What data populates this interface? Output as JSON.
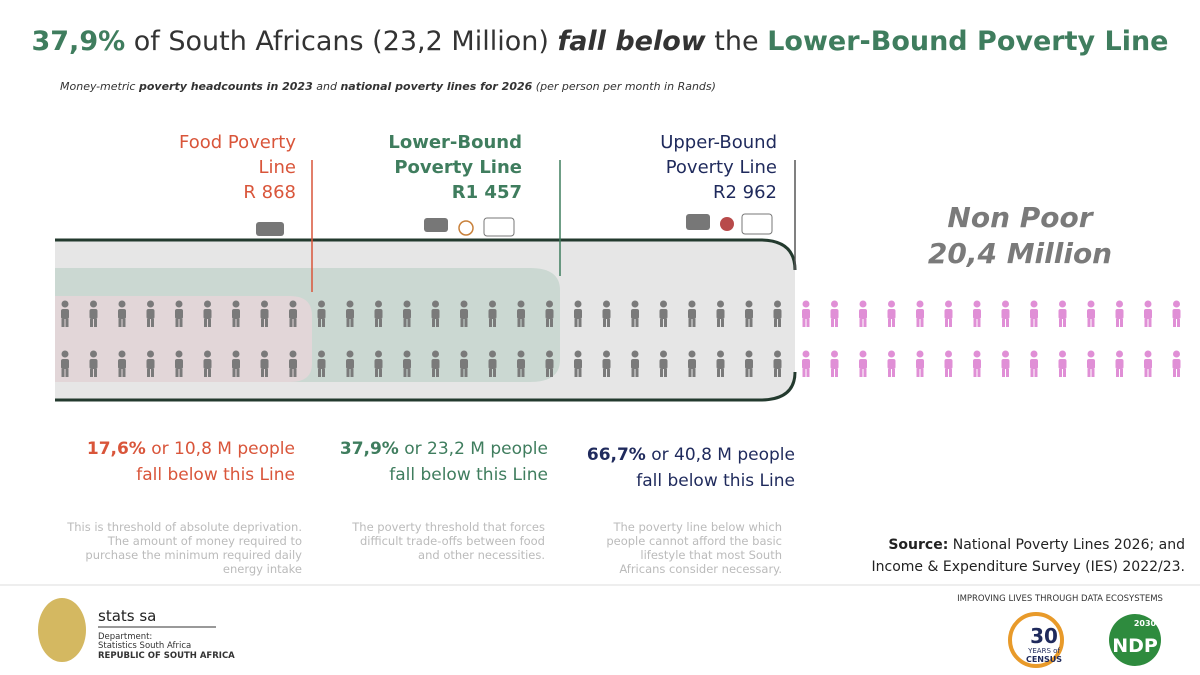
{
  "header": {
    "title": [
      "37,9%",
      " of South Africans (23,2 Million) ",
      "fall below",
      " the ",
      "Lower-Bound Poverty Line"
    ],
    "subtitle": [
      "Money-metric ",
      "poverty headcounts in 2023",
      " and ",
      "national poverty lines for 2026",
      " (per person per month in Rands)"
    ]
  },
  "lines": [
    {
      "name": [
        "Food Poverty",
        "Line"
      ],
      "amount": "R  868",
      "share": "17,6%",
      "count": " or 10,8 M people",
      "note": "fall below this Line",
      "description": "This is threshold of absolute deprivation. The amount of money required to purchase the minimum required daily energy intake"
    },
    {
      "name": [
        "Lower-Bound",
        "Poverty Line"
      ],
      "amount": "R1 457",
      "share": "37,9%",
      "count": " or 23,2 M people",
      "note": "fall below this Line",
      "description": "The poverty threshold that forces difficult trade-offs between food and other necessities."
    },
    {
      "name": [
        "Upper-Bound",
        "Poverty Line"
      ],
      "amount": "R2 962",
      "share": "66,7%",
      "count": " or 40,8 M people",
      "note": "fall below this Line",
      "description": "The poverty line below which people cannot afford the basic lifestyle that most South Africans consider necessary."
    }
  ],
  "non_poor": {
    "label": "Non Poor",
    "count": "20,4 Million"
  },
  "source": {
    "label": "Source:",
    "text": " National Poverty Lines 2026; and Income & Expenditure Survey (IES) 2022/23."
  },
  "footer": {
    "brand": "stats sa",
    "department": [
      "Department:",
      "Statistics South Africa",
      "REPUBLIC OF SOUTH AFRICA"
    ],
    "tagline": "IMPROVING LIVES THROUGH DATA ECOSYSTEMS",
    "census": [
      "30",
      "YEARS of",
      "CENSUS"
    ],
    "ndp": [
      "2030",
      "NDP"
    ]
  }
}
